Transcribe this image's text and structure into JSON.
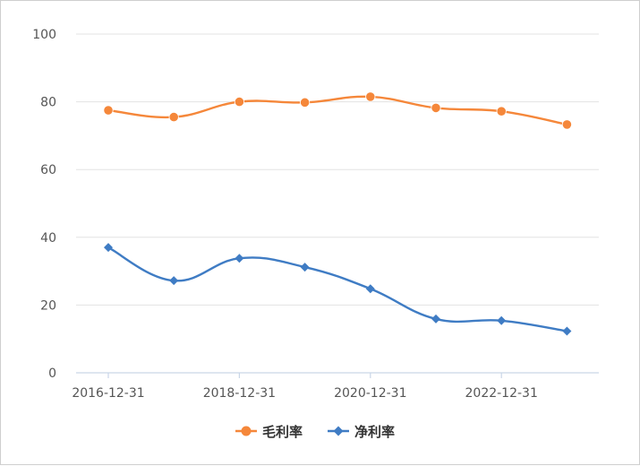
{
  "chart_data": {
    "type": "line",
    "x": [
      "2016-12-31",
      "2017-12-31",
      "2018-12-31",
      "2019-12-31",
      "2020-12-31",
      "2021-12-31",
      "2022-12-31",
      "2023-12-31"
    ],
    "x_tick_labels": [
      "2016-12-31",
      "2018-12-31",
      "2020-12-31",
      "2022-12-31"
    ],
    "ylim": [
      0,
      100
    ],
    "y_ticks": [
      0,
      20,
      40,
      60,
      80,
      100
    ],
    "grid": true,
    "legend_position": "bottom",
    "series": [
      {
        "name": "毛利率",
        "color": "#F5873A",
        "marker": "circle",
        "values": [
          77.5,
          75.5,
          80.0,
          79.8,
          81.5,
          78.2,
          77.2,
          73.3
        ]
      },
      {
        "name": "净利率",
        "color": "#3F7CC4",
        "marker": "diamond",
        "values": [
          37.0,
          27.2,
          33.8,
          31.2,
          24.8,
          15.9,
          15.4,
          12.3
        ]
      }
    ]
  }
}
